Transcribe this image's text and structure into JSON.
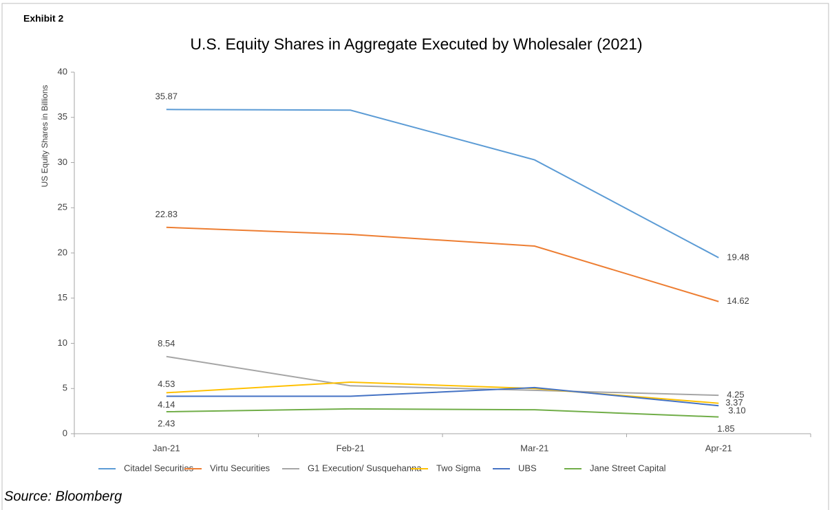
{
  "chart_data": {
    "type": "line",
    "label": "Exhibit 2",
    "title": "U.S. Equity Shares in Aggregate Executed by Wholesaler (2021)",
    "y_label": "US Equity Shares in Billions",
    "source": "Source: Bloomberg",
    "categories": [
      "Jan-21",
      "Feb-21",
      "Mar-21",
      "Apr-21"
    ],
    "ylim": [
      0,
      40
    ],
    "yticks": [
      0,
      5,
      10,
      15,
      20,
      25,
      30,
      35,
      40
    ],
    "grid": false,
    "legend": "bottom",
    "series": [
      {
        "name": "Citadel Securities",
        "color": "#5b9bd5",
        "values": [
          35.87,
          35.8,
          30.3,
          19.48
        ],
        "value_labels": [
          "35.87",
          null,
          null,
          "19.48"
        ]
      },
      {
        "name": "Virtu Securities",
        "color": "#ed7d31",
        "values": [
          22.83,
          22.05,
          20.76,
          14.62
        ],
        "value_labels": [
          "22.83",
          null,
          null,
          "14.62"
        ]
      },
      {
        "name": "G1 Execution/ Susquehanna",
        "color": "#a5a5a5",
        "values": [
          8.54,
          5.3,
          4.8,
          4.25
        ],
        "value_labels": [
          "8.54",
          null,
          null,
          "4.25"
        ]
      },
      {
        "name": "Two Sigma",
        "color": "#ffc000",
        "values": [
          4.53,
          5.7,
          5.0,
          3.37
        ],
        "value_labels": [
          "4.53",
          null,
          null,
          "3.37"
        ]
      },
      {
        "name": "UBS",
        "color": "#4472c4",
        "values": [
          4.14,
          4.14,
          5.1,
          3.1
        ],
        "value_labels": [
          "4.14",
          null,
          null,
          "3.10"
        ]
      },
      {
        "name": "Jane Street Capital",
        "color": "#70ad47",
        "values": [
          2.43,
          2.75,
          2.65,
          1.85
        ],
        "value_labels": [
          "2.43",
          null,
          null,
          "1.85"
        ]
      }
    ]
  }
}
